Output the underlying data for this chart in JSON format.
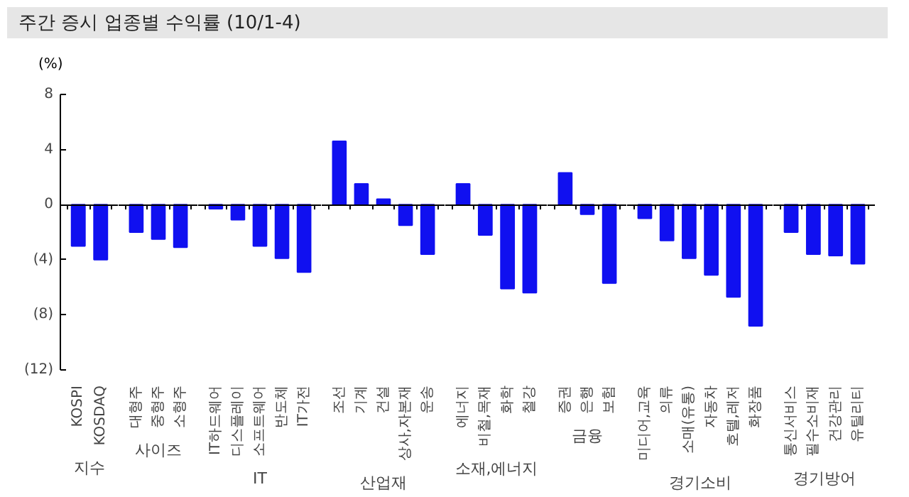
{
  "chart_data": [
    {
      "type": "bar",
      "title": "주간 증시 업종별 수익률 (10/1-4)",
      "ylabel": "(%)",
      "xlabel": "지수",
      "categories": [
        "KOSPI",
        "KOSDAQ"
      ],
      "values": [
        -3.0,
        -4.0
      ],
      "color": "#1010f0",
      "ylim": [
        -12,
        8
      ],
      "yticks": [
        8,
        4,
        0,
        {
          "value": -4,
          "label": "(4)"
        },
        {
          "value": -8,
          "label": "(8)"
        },
        {
          "value": -12,
          "label": "(12)"
        }
      ]
    },
    {
      "type": "bar",
      "xlabel": "사이즈",
      "categories": [
        "대형주",
        "중형주",
        "소형주"
      ],
      "values": [
        -2.0,
        -2.5,
        -3.1
      ],
      "color": "#1010f0",
      "ylim": [
        -12,
        8
      ],
      "tick_labels": "x"
    },
    {
      "type": "bar",
      "xlabel": "IT",
      "categories": [
        "IT하드웨어",
        "디스플레이",
        "소프트웨어",
        "반도체",
        "IT가전"
      ],
      "values": [
        -0.3,
        -1.1,
        -3.0,
        -3.9,
        -4.9
      ],
      "color": "#1010f0",
      "ylim": [
        -12,
        8
      ],
      "tick_labels": "x"
    },
    {
      "type": "bar",
      "xlabel": "산업재",
      "categories": [
        "조선",
        "기계",
        "건설",
        "상사,자본재",
        "운송"
      ],
      "values": [
        4.6,
        1.5,
        0.4,
        -1.5,
        -3.6
      ],
      "color": "#1010f0",
      "ylim": [
        -12,
        8
      ],
      "tick_labels": "x"
    },
    {
      "type": "bar",
      "xlabel": "소재,에너지",
      "categories": [
        "에너지",
        "비철,목재",
        "화학",
        "철강"
      ],
      "values": [
        1.5,
        -2.2,
        -6.1,
        -6.4
      ],
      "color": "#1010f0",
      "ylim": [
        -12,
        8
      ],
      "tick_labels": "x"
    },
    {
      "type": "bar",
      "xlabel": "금융",
      "categories": [
        "증권",
        "은행",
        "보험"
      ],
      "values": [
        2.3,
        -0.7,
        -5.7
      ],
      "color": "#1010f0",
      "ylim": [
        -12,
        8
      ],
      "tick_labels": "x"
    },
    {
      "type": "bar",
      "xlabel": "경기소비",
      "categories": [
        "미디어,교육",
        "의류",
        "소매(유통)",
        "자동차",
        "호텔,레저",
        "화장품"
      ],
      "values": [
        -1.0,
        -2.6,
        -3.9,
        -5.1,
        -6.7,
        -8.8
      ],
      "color": "#1010f0",
      "ylim": [
        -12,
        8
      ],
      "tick_labels": "x"
    },
    {
      "type": "bar",
      "xlabel": "경기방어",
      "categories": [
        "통신서비스",
        "필수소비재",
        "건강관리",
        "유틸리티"
      ],
      "values": [
        -2.0,
        -3.6,
        -3.7,
        -4.3
      ],
      "color": "#1010f0",
      "ylim": [
        -12,
        8
      ],
      "tick_labels": "x"
    }
  ]
}
